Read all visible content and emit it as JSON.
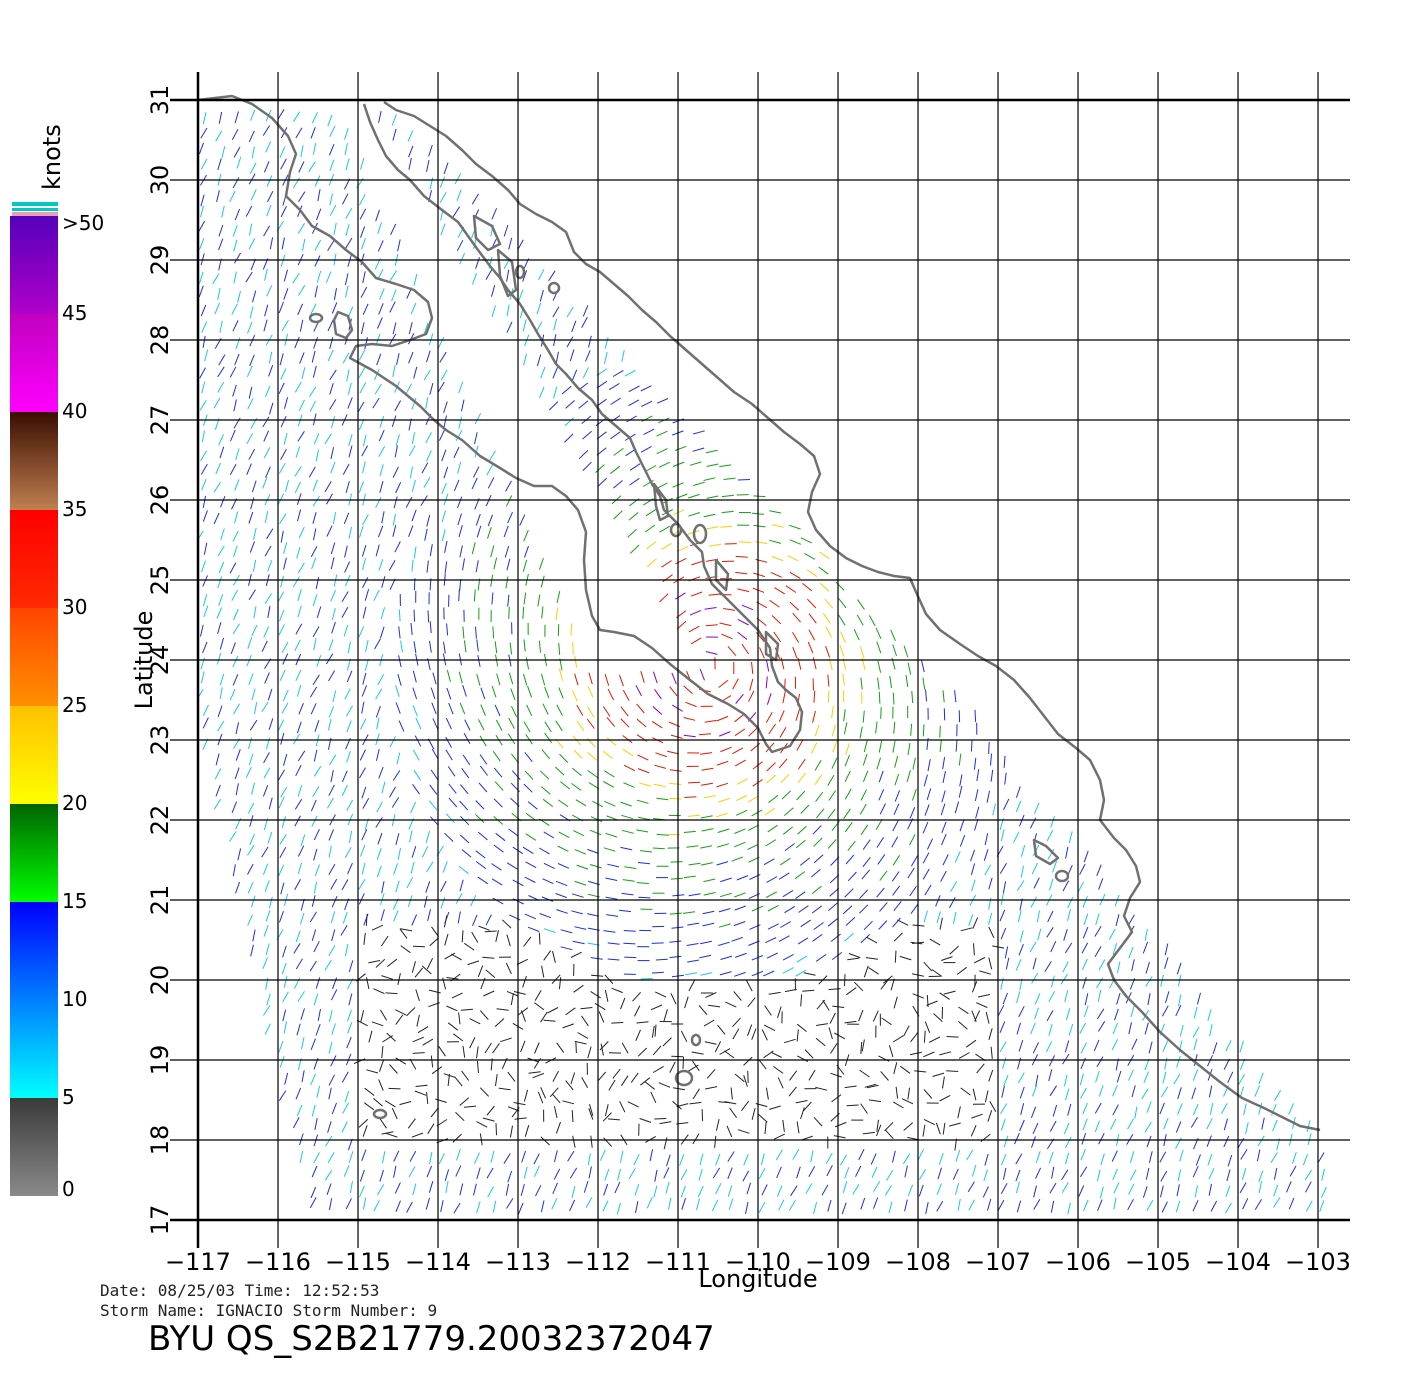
{
  "map": {
    "xlabel": "Longitude",
    "ylabel": "Latitude",
    "lon_range": [
      -117,
      -102.6
    ],
    "lat_range": [
      17,
      31
    ],
    "lon_ticks": [
      -117,
      -116,
      -115,
      -114,
      -113,
      -112,
      -111,
      -110,
      -109,
      -108,
      -107,
      -106,
      -105,
      -104,
      -103
    ],
    "lon_tick_labels": [
      "−117",
      "−116",
      "−115",
      "−114",
      "−113",
      "−112",
      "−111",
      "−110",
      "−109",
      "−108",
      "−107",
      "−106",
      "−105",
      "−104",
      "−103"
    ],
    "lat_ticks": [
      17,
      18,
      19,
      20,
      21,
      22,
      23,
      24,
      25,
      26,
      27,
      28,
      29,
      30,
      31
    ],
    "lat_tick_labels": [
      "17",
      "18",
      "19",
      "20",
      "21",
      "22",
      "23",
      "24",
      "25",
      "26",
      "27",
      "28",
      "29",
      "30",
      "31"
    ],
    "grid": true,
    "storm_center": {
      "lon": -110.6,
      "lat": 23.9
    },
    "coastline_color": "#707070",
    "grid_color": "#000000"
  },
  "colorbar": {
    "unit": "knots",
    "labels": [
      ">50",
      "45",
      "40",
      "35",
      "30",
      "25",
      "20",
      "15",
      "10",
      "5",
      "0"
    ],
    "bands": [
      {
        "from": 0,
        "to": 5,
        "top": "#3a3a3a",
        "bottom": "#8a8a8a"
      },
      {
        "from": 5,
        "to": 15,
        "top": "#0000ff",
        "bottom": "#00ffff"
      },
      {
        "from": 15,
        "to": 20,
        "top": "#006400",
        "bottom": "#00ff00"
      },
      {
        "from": 20,
        "to": 25,
        "top": "#ffc000",
        "bottom": "#ffff00"
      },
      {
        "from": 25,
        "to": 30,
        "top": "#ff4500",
        "bottom": "#ff9000"
      },
      {
        "from": 30,
        "to": 35,
        "top": "#ff0000",
        "bottom": "#ff2a00"
      },
      {
        "from": 35,
        "to": 40,
        "top": "#3a0d00",
        "bottom": "#c08050"
      },
      {
        "from": 40,
        "to": 45,
        "top": "#c000c0",
        "bottom": "#ff00ff"
      },
      {
        "from": 45,
        "to": 50,
        "top": "#5500bb",
        "bottom": "#b000c8"
      }
    ]
  },
  "info": {
    "line1": "Date: 08/25/03   Time: 12:52:53",
    "line2": "Storm Name: IGNACIO   Storm Number: 9",
    "product_id": "BYU QS_S2B21779.20032372047"
  }
}
